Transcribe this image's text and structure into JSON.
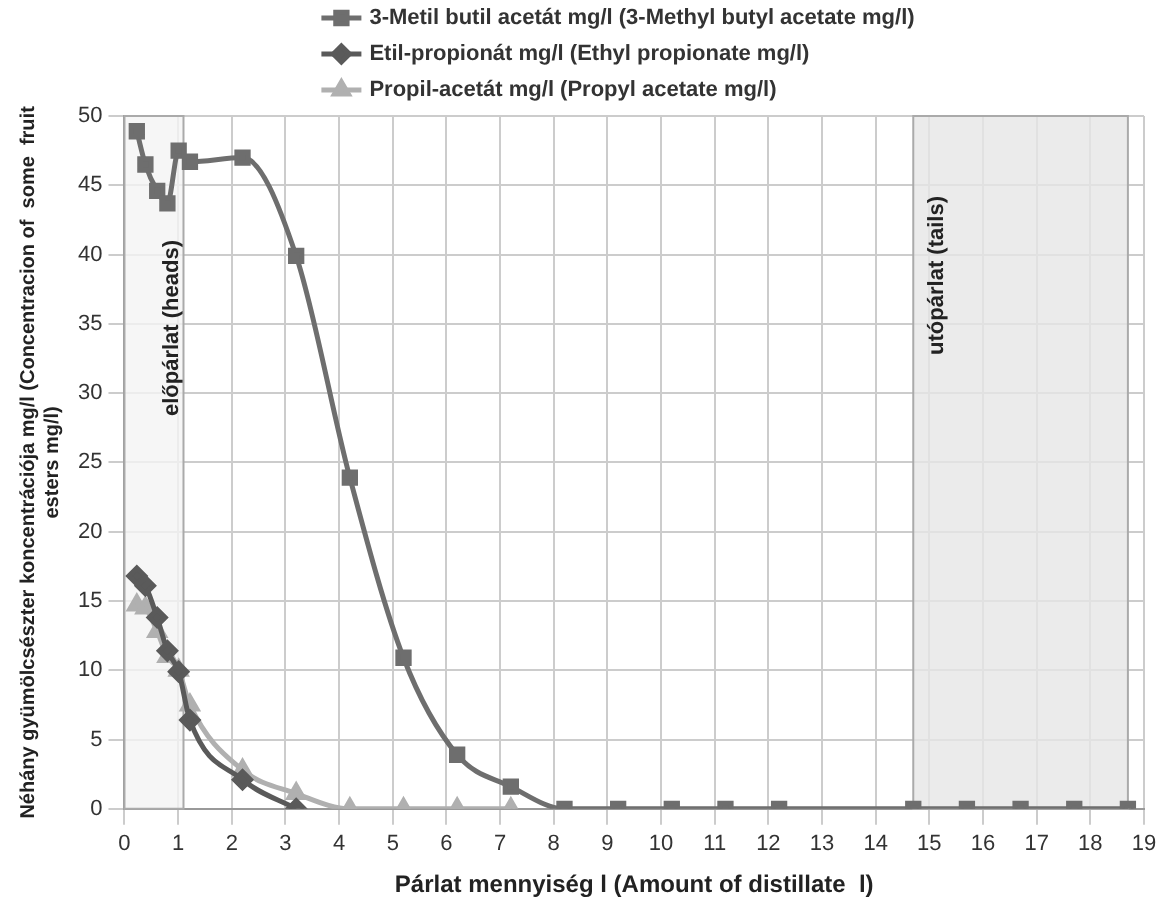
{
  "chart_data": {
    "type": "line",
    "xlabel": "Párlat mennyiség l (Amount of distillate  l)",
    "ylabel": "Néhány gyümölcsészter koncentrációja mg/l (Concentracion of  some  fruit esters mg/l)",
    "xlim": [
      0,
      19
    ],
    "xticks": [
      0,
      1,
      2,
      3,
      4,
      5,
      6,
      7,
      8,
      9,
      10,
      11,
      12,
      13,
      14,
      15,
      16,
      17,
      18,
      19
    ],
    "ylim": [
      0,
      50
    ],
    "yticks": [
      0,
      5,
      10,
      15,
      20,
      25,
      30,
      35,
      40,
      45,
      50
    ],
    "grid": true,
    "legend": "top",
    "series": [
      {
        "name": "3-Metil butil acetát mg/l (3-Methyl butyl acetate mg/l)",
        "color": "#6e6e6e",
        "marker": "square",
        "x": [
          0.23,
          0.39,
          0.61,
          0.8,
          1.01,
          1.22,
          2.2,
          3.2,
          4.2,
          5.2,
          6.2,
          7.2,
          8.2,
          9.2,
          10.2,
          11.2,
          12.2,
          14.7,
          15.7,
          16.7,
          17.7,
          18.7
        ],
        "values": [
          48.9,
          46.5,
          44.6,
          43.7,
          47.5,
          46.7,
          47,
          39.9,
          23.9,
          10.9,
          3.9,
          1.6,
          0,
          0,
          0,
          0,
          0,
          0,
          0,
          0,
          0,
          0
        ]
      },
      {
        "name": "Etil-propionát mg/l (Ethyl propionate mg/l)",
        "color": "#5a5a5a",
        "marker": "diamond",
        "x": [
          0.23,
          0.39,
          0.61,
          0.8,
          1.01,
          1.22,
          2.2,
          3.2
        ],
        "values": [
          16.8,
          16.1,
          13.8,
          11.4,
          9.9,
          6.4,
          2.1,
          0
        ]
      },
      {
        "name": "Propil-acetát mg/l (Propyl acetate mg/l)",
        "color": "#b0b0b0",
        "marker": "triangle",
        "x": [
          0.23,
          0.39,
          0.61,
          0.8,
          1.01,
          1.22,
          2.2,
          3.2,
          4.2,
          5.2,
          6.2,
          7.2
        ],
        "values": [
          14.7,
          14.5,
          12.8,
          11,
          10,
          7.5,
          2.8,
          1.1,
          0,
          0,
          0,
          0
        ]
      }
    ],
    "bands": [
      {
        "axis": "x",
        "from": 0,
        "to": 1.1,
        "label": "előpárlat (heads)",
        "color": "#f4f4f4"
      },
      {
        "axis": "x",
        "from": 14.7,
        "to": 18.7,
        "label": "utópárlat (tails)",
        "color": "#e6e6e6"
      }
    ]
  }
}
